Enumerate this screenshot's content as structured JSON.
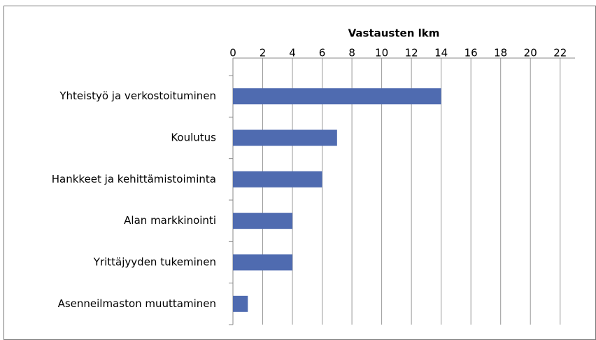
{
  "chart_data": {
    "type": "bar",
    "orientation": "horizontal",
    "x_label": "Vastausten lkm",
    "categories": [
      "Yhteistyö ja verkostoituminen",
      "Koulutus",
      "Hankkeet ja kehittämistoiminta",
      "Alan markkinointi",
      "Yrittäjyyden tukeminen",
      "Asenneilmaston muuttaminen"
    ],
    "values": [
      14,
      7,
      6,
      4,
      4,
      1
    ],
    "color": "#4f6bb0",
    "xlim": [
      0,
      23
    ],
    "xticks": [
      0,
      2,
      4,
      6,
      8,
      10,
      12,
      14,
      16,
      18,
      20,
      22
    ],
    "grid": true,
    "axis_position": "top"
  }
}
